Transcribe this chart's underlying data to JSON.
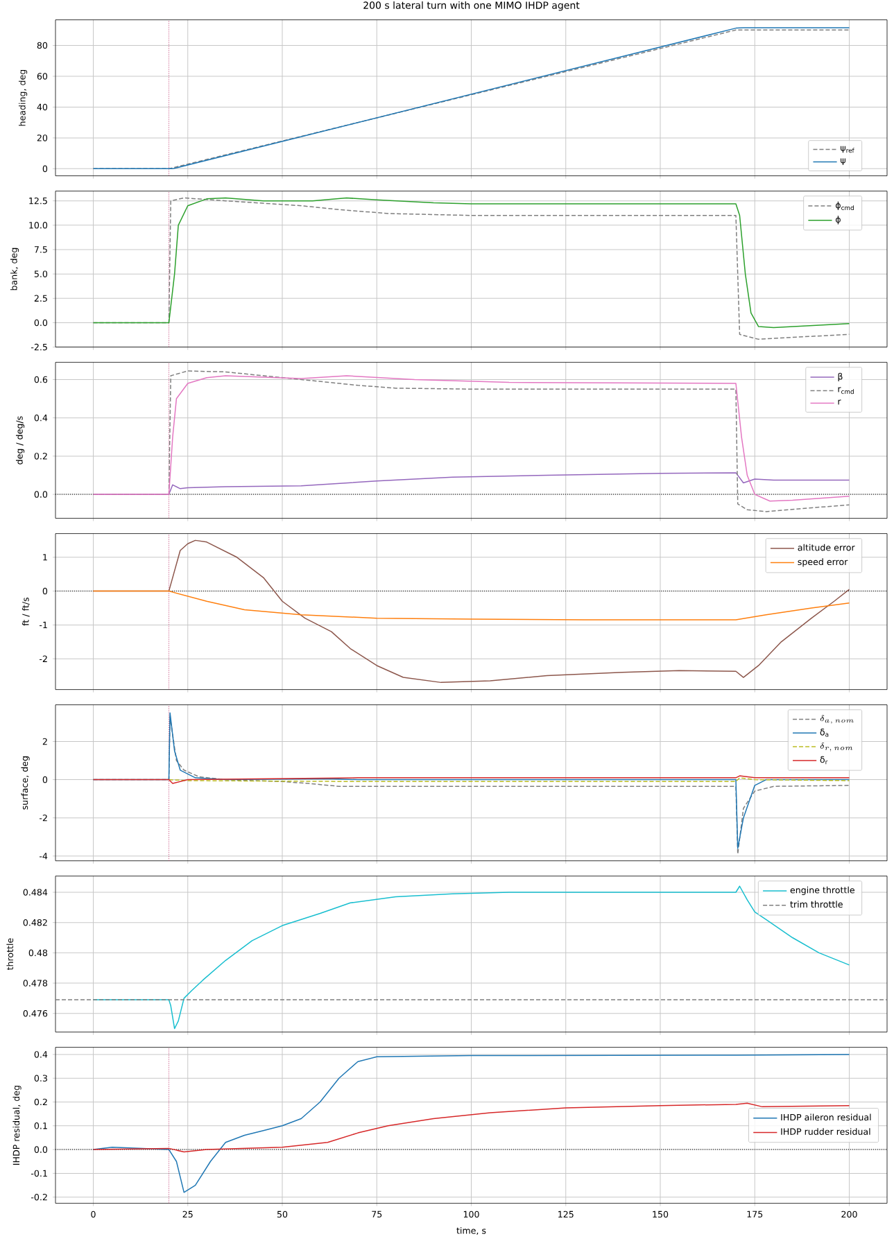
{
  "chart_data": [
    {
      "type": "line",
      "title": "200 s lateral turn with one MIMO IHDP agent",
      "ylabel": "heading, deg",
      "xlim": [
        -10,
        210
      ],
      "ylim": [
        -4.6,
        96.6
      ],
      "xticks": [
        0,
        25,
        50,
        75,
        100,
        125,
        150,
        175,
        200
      ],
      "yticks": [
        0,
        20,
        40,
        60,
        80
      ],
      "grid": true,
      "legend": "bottom right",
      "tick_labels": "y",
      "ref_lines": [
        {
          "axis": "x",
          "value": 20,
          "color": "#c0306a",
          "line_style": "dotted"
        }
      ],
      "series": [
        {
          "name": "ψ$_{ref}$",
          "color": "#7f7f7f",
          "line_style": "dashed",
          "x": [
            0,
            20,
            170,
            200
          ],
          "values": [
            0,
            0,
            90,
            90
          ]
        },
        {
          "name": "ψ",
          "color": "#1f77b4",
          "line_style": "solid",
          "x": [
            0,
            21,
            170,
            172,
            200
          ],
          "values": [
            0,
            0,
            91.2,
            91.5,
            91.5
          ]
        }
      ]
    },
    {
      "type": "line",
      "ylabel": "bank, deg",
      "xlim": [
        -10,
        210
      ],
      "ylim": [
        -2.5,
        13.5
      ],
      "xticks": [
        0,
        25,
        50,
        75,
        100,
        125,
        150,
        175,
        200
      ],
      "yticks": [
        -2.5,
        {
          "value": 0,
          "label": "0.0"
        },
        2.5,
        {
          "value": 5,
          "label": "5.0"
        },
        7.5,
        {
          "value": 10,
          "label": "10.0"
        },
        12.5
      ],
      "grid": true,
      "legend": "top right",
      "tick_labels": "y",
      "ref_lines": [
        {
          "axis": "x",
          "value": 20,
          "color": "#c0306a",
          "line_style": "dotted"
        }
      ],
      "series": [
        {
          "name": "ϕ$_{cmd}$",
          "color": "#7f7f7f",
          "line_style": "dashed",
          "x": [
            0,
            20,
            20.5,
            24,
            35,
            55,
            65,
            78,
            100,
            170,
            171,
            176,
            185,
            200
          ],
          "values": [
            0,
            0,
            12.5,
            12.8,
            12.5,
            12.0,
            11.6,
            11.2,
            11.0,
            11.0,
            -1.2,
            -1.7,
            -1.5,
            -1.2
          ]
        },
        {
          "name": "ϕ",
          "color": "#2ca02c",
          "line_style": "solid",
          "x": [
            0,
            20,
            21.5,
            22.5,
            25,
            30,
            35,
            45,
            58,
            67,
            75,
            90,
            100,
            170,
            171,
            172.5,
            174,
            176,
            180,
            190,
            200
          ],
          "values": [
            0,
            0,
            5,
            10,
            12,
            12.7,
            12.8,
            12.5,
            12.5,
            12.8,
            12.6,
            12.3,
            12.2,
            12.2,
            11,
            5,
            1,
            -0.4,
            -0.5,
            -0.3,
            -0.1
          ]
        }
      ]
    },
    {
      "type": "line",
      "ylabel": "deg / deg/s",
      "xlim": [
        -10,
        210
      ],
      "ylim": [
        -0.125,
        0.69
      ],
      "xticks": [
        0,
        25,
        50,
        75,
        100,
        125,
        150,
        175,
        200
      ],
      "yticks": [
        {
          "value": 0,
          "label": "0.0"
        },
        0.2,
        0.4,
        0.6
      ],
      "grid": true,
      "legend": "top right",
      "tick_labels": "y",
      "ref_lines": [
        {
          "axis": "x",
          "value": 20,
          "color": "#c0306a",
          "line_style": "dotted"
        },
        {
          "axis": "y",
          "value": 0,
          "color": "#000000",
          "line_style": "dotted"
        }
      ],
      "series": [
        {
          "name": "β",
          "color": "#9467bd",
          "line_style": "solid",
          "x": [
            0,
            20,
            21,
            23,
            25,
            35,
            55,
            75,
            95,
            120,
            150,
            170,
            172,
            175,
            180,
            200
          ],
          "values": [
            0,
            0,
            0.05,
            0.03,
            0.035,
            0.04,
            0.045,
            0.07,
            0.09,
            0.1,
            0.11,
            0.113,
            0.06,
            0.08,
            0.075,
            0.075
          ]
        },
        {
          "name": "r$_{cmd}$",
          "color": "#7f7f7f",
          "line_style": "dashed",
          "x": [
            0,
            20,
            20.5,
            25,
            35,
            55,
            70,
            80,
            100,
            170,
            170.5,
            173,
            178,
            190,
            200
          ],
          "values": [
            0,
            0,
            0.62,
            0.645,
            0.64,
            0.6,
            0.57,
            0.555,
            0.55,
            0.55,
            -0.05,
            -0.08,
            -0.09,
            -0.07,
            -0.055
          ]
        },
        {
          "name": "r",
          "color": "#e377c2",
          "line_style": "solid",
          "x": [
            0,
            20,
            21,
            22,
            25,
            30,
            35,
            55,
            67,
            85,
            110,
            170,
            171.5,
            173,
            175,
            179,
            185,
            200
          ],
          "values": [
            0,
            0,
            0.3,
            0.5,
            0.58,
            0.61,
            0.62,
            0.605,
            0.62,
            0.6,
            0.585,
            0.58,
            0.3,
            0.1,
            0,
            -0.035,
            -0.03,
            -0.01
          ]
        }
      ]
    },
    {
      "type": "line",
      "ylabel": "ft / ft/s",
      "xlim": [
        -10,
        210
      ],
      "ylim": [
        -2.91,
        1.7
      ],
      "xticks": [
        0,
        25,
        50,
        75,
        100,
        125,
        150,
        175,
        200
      ],
      "yticks": [
        -2,
        -1,
        0,
        1
      ],
      "grid": true,
      "legend": "top right",
      "tick_labels": "y",
      "ref_lines": [
        {
          "axis": "x",
          "value": 20,
          "color": "#c0306a",
          "line_style": "dotted"
        },
        {
          "axis": "y",
          "value": 0,
          "color": "#000000",
          "line_style": "dotted"
        }
      ],
      "series": [
        {
          "name": "altitude error",
          "color": "#8c564b",
          "line_style": "solid",
          "x": [
            0,
            20,
            23,
            25,
            27,
            30,
            38,
            45,
            50,
            56,
            63,
            68,
            75,
            82,
            92,
            105,
            120,
            140,
            155,
            170,
            172,
            176,
            182,
            190,
            196,
            200
          ],
          "values": [
            0,
            0,
            1.2,
            1.4,
            1.5,
            1.45,
            1.0,
            0.4,
            -0.3,
            -0.8,
            -1.2,
            -1.7,
            -2.2,
            -2.55,
            -2.7,
            -2.65,
            -2.5,
            -2.4,
            -2.35,
            -2.37,
            -2.55,
            -2.2,
            -1.5,
            -0.8,
            -0.3,
            0.05
          ]
        },
        {
          "name": "speed error",
          "color": "#ff7f0e",
          "line_style": "solid",
          "x": [
            0,
            20,
            30,
            40,
            55,
            75,
            100,
            130,
            170,
            178,
            190,
            200
          ],
          "values": [
            0,
            0,
            -0.3,
            -0.55,
            -0.7,
            -0.8,
            -0.83,
            -0.85,
            -0.85,
            -0.7,
            -0.5,
            -0.35
          ]
        }
      ]
    },
    {
      "type": "line",
      "ylabel": "surface, deg",
      "xlim": [
        -10,
        210
      ],
      "ylim": [
        -4.25,
        3.92
      ],
      "xticks": [
        0,
        25,
        50,
        75,
        100,
        125,
        150,
        175,
        200
      ],
      "yticks": [
        -4,
        -2,
        0,
        2
      ],
      "grid": true,
      "legend": "top right",
      "tick_labels": "y",
      "ref_lines": [
        {
          "axis": "x",
          "value": 20,
          "color": "#c0306a",
          "line_style": "dotted"
        }
      ],
      "series": [
        {
          "name": "\\delta_{a,\\,nom}",
          "color": "#7f7f7f",
          "line_style": "dashed",
          "x": [
            0,
            20,
            20.3,
            22,
            24,
            28,
            35,
            50,
            57,
            65,
            170,
            170.5,
            172,
            175,
            180,
            200
          ],
          "values": [
            0,
            0,
            3.3,
            1,
            0.5,
            0.15,
            0,
            -0.1,
            -0.2,
            -0.35,
            -0.35,
            -3.9,
            -1.5,
            -0.6,
            -0.35,
            -0.3
          ]
        },
        {
          "name": "δ$_{a}$",
          "color": "#1f77b4",
          "line_style": "solid",
          "x": [
            0,
            20,
            20.3,
            21.5,
            23,
            27,
            35,
            62,
            70,
            170,
            170.5,
            172,
            175,
            178,
            200
          ],
          "values": [
            0,
            0,
            3.5,
            1.5,
            0.5,
            0.1,
            0,
            0.05,
            0,
            0,
            -3.6,
            -2,
            -0.3,
            0,
            0
          ]
        },
        {
          "name": "\\delta_{r,\\,nom}",
          "color": "#bcbd22",
          "line_style": "dashed",
          "x": [
            20,
            25,
            70,
            170,
            171,
            175,
            200
          ],
          "values": [
            0,
            -0.05,
            -0.1,
            -0.1,
            0.1,
            0,
            -0.05
          ]
        },
        {
          "name": "δ$_{r}$",
          "color": "#d62728",
          "line_style": "solid",
          "x": [
            0,
            20,
            21,
            25,
            70,
            170,
            171,
            175,
            200
          ],
          "values": [
            0,
            0,
            -0.2,
            0,
            0.1,
            0.1,
            0.2,
            0.1,
            0.1
          ]
        }
      ]
    },
    {
      "type": "line",
      "ylabel": "throttle",
      "xlim": [
        -10,
        210
      ],
      "ylim": [
        0.47477,
        0.48507
      ],
      "xticks": [
        0,
        25,
        50,
        75,
        100,
        125,
        150,
        175,
        200
      ],
      "yticks": [
        0.476,
        0.478,
        0.48,
        0.482,
        0.484
      ],
      "grid": true,
      "legend": "top right",
      "tick_labels": "y",
      "series": [
        {
          "name": "engine throttle",
          "color": "#17becf",
          "line_style": "solid",
          "x": [
            0,
            20,
            20.5,
            21.5,
            22.5,
            24,
            26,
            29,
            35,
            42,
            50,
            60,
            68,
            80,
            95,
            110,
            170,
            171,
            173,
            175,
            178,
            185,
            192,
            200
          ],
          "values": [
            0.4769,
            0.4769,
            0.4765,
            0.475,
            0.4755,
            0.477,
            0.4775,
            0.4782,
            0.4795,
            0.4808,
            0.4818,
            0.4826,
            0.4833,
            0.4837,
            0.4839,
            0.484,
            0.484,
            0.4844,
            0.4835,
            0.4827,
            0.4822,
            0.481,
            0.48,
            0.4792
          ]
        },
        {
          "name": "trim throttle",
          "color": "#7f7f7f",
          "line_style": "dashed",
          "x": [
            -10,
            210
          ],
          "values": [
            0.4769,
            0.4769
          ]
        }
      ]
    },
    {
      "type": "line",
      "xlabel": "time, s",
      "ylabel": "IHDP residual, deg",
      "xlim": [
        -10,
        210
      ],
      "ylim": [
        -0.226,
        0.43
      ],
      "xticks": [
        0,
        25,
        50,
        75,
        100,
        125,
        150,
        175,
        200
      ],
      "yticks": [
        -0.2,
        -0.1,
        {
          "value": 0,
          "label": "0.0"
        },
        0.1,
        0.2,
        0.3,
        0.4
      ],
      "grid": true,
      "legend": "right",
      "ref_lines": [
        {
          "axis": "x",
          "value": 20,
          "color": "#c0306a",
          "line_style": "dotted"
        },
        {
          "axis": "y",
          "value": 0,
          "color": "#000000",
          "line_style": "dotted"
        }
      ],
      "series": [
        {
          "name": "IHDP aileron residual",
          "color": "#1f77b4",
          "line_style": "solid",
          "x": [
            0,
            5,
            20,
            22,
            24,
            27,
            31,
            35,
            40,
            45,
            50,
            55,
            60,
            65,
            70,
            75,
            100,
            170,
            200
          ],
          "values": [
            0,
            0.01,
            0,
            -0.05,
            -0.18,
            -0.15,
            -0.05,
            0.03,
            0.06,
            0.08,
            0.1,
            0.13,
            0.2,
            0.3,
            0.37,
            0.39,
            0.395,
            0.397,
            0.4
          ]
        },
        {
          "name": "IHDP rudder residual",
          "color": "#d62728",
          "line_style": "solid",
          "x": [
            0,
            20,
            24,
            30,
            50,
            62,
            70,
            78,
            90,
            105,
            125,
            150,
            170,
            173,
            177,
            200
          ],
          "values": [
            0,
            0.005,
            -0.01,
            0,
            0.01,
            0.03,
            0.07,
            0.1,
            0.13,
            0.155,
            0.175,
            0.185,
            0.19,
            0.195,
            0.18,
            0.185
          ]
        }
      ]
    }
  ]
}
